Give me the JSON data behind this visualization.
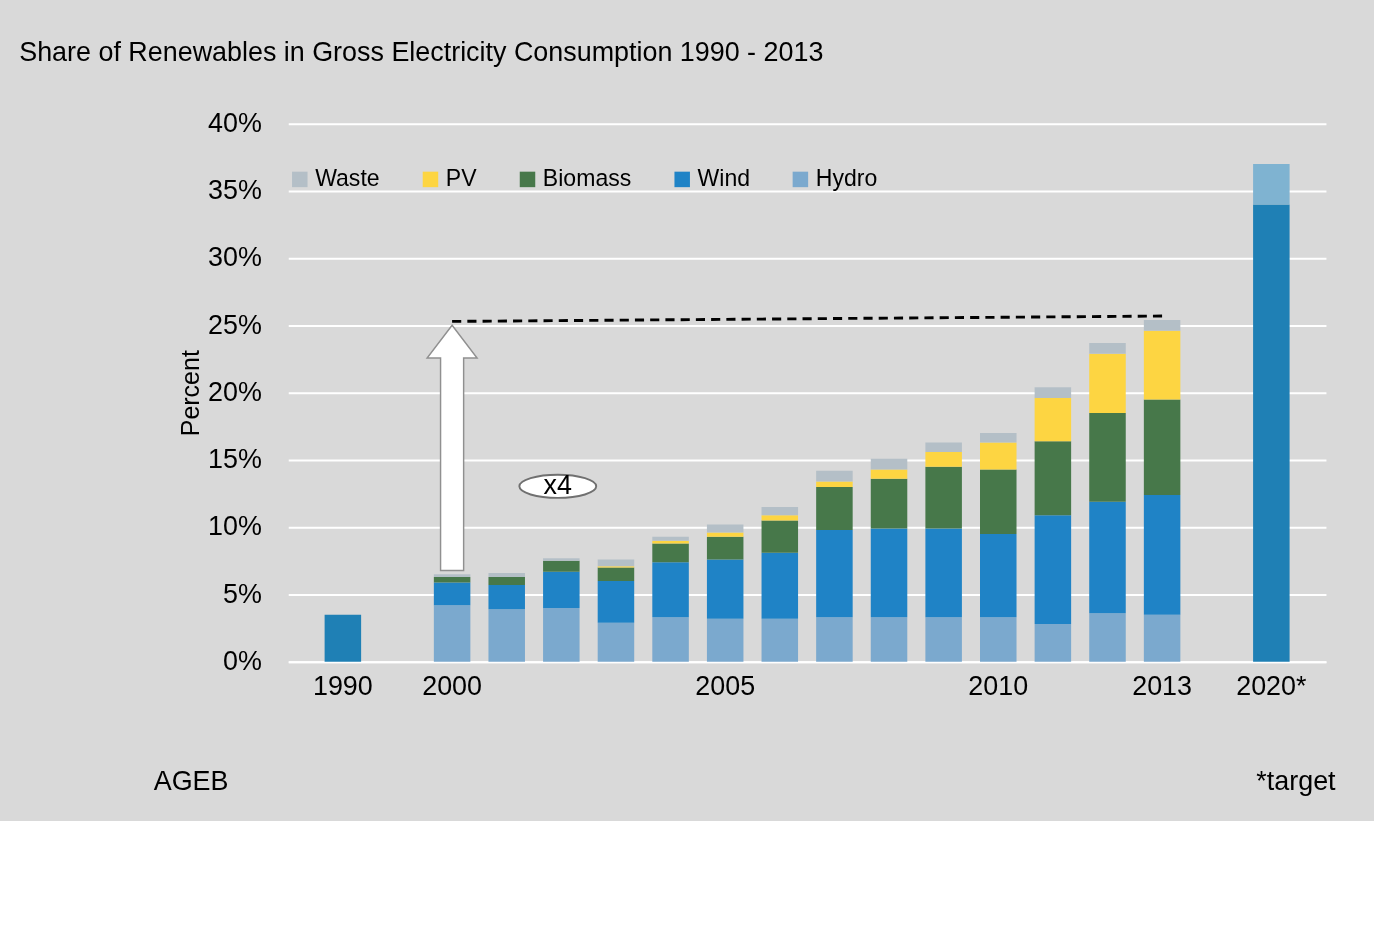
{
  "chart_data": {
    "type": "bar",
    "title": "Share of Renewables in Gross Electricity Consumption 1990 - 2013",
    "ylabel": "Percent",
    "stacked": true,
    "legend": "top",
    "grid": "y",
    "categories": [
      "1990",
      null,
      "2000",
      null,
      null,
      null,
      null,
      "2005",
      null,
      null,
      null,
      null,
      "2010",
      null,
      null,
      "2013",
      null,
      "2020*"
    ],
    "ylim": [
      0,
      40
    ],
    "yticks": [
      {
        "value": 0,
        "label": "0%"
      },
      {
        "value": 5,
        "label": "5%"
      },
      {
        "value": 10,
        "label": "10%"
      },
      {
        "value": 15,
        "label": "15%"
      },
      {
        "value": 20,
        "label": "20%"
      },
      {
        "value": 25,
        "label": "25%"
      },
      {
        "value": 30,
        "label": "30%"
      },
      {
        "value": 35,
        "label": "35%"
      },
      {
        "value": 40,
        "label": "40%"
      }
    ],
    "series": [
      {
        "color": "#1f80b5",
        "values": [
          3.5,
          null,
          null,
          null,
          null,
          null,
          null,
          null,
          null,
          null,
          null,
          null,
          null,
          null,
          null,
          null,
          null,
          34.0
        ]
      },
      {
        "name": "Hydro",
        "color": "#7ba9ce",
        "values": [
          null,
          null,
          4.2,
          3.9,
          4.0,
          2.9,
          3.3,
          3.2,
          3.2,
          3.3,
          3.3,
          3.3,
          3.3,
          2.8,
          3.6,
          3.5,
          null,
          null
        ]
      },
      {
        "name": "Wind",
        "color": "#1f83c6",
        "values": [
          null,
          null,
          1.7,
          1.8,
          2.7,
          3.1,
          4.1,
          4.4,
          4.9,
          6.5,
          6.6,
          6.6,
          6.2,
          8.1,
          8.3,
          8.9,
          null,
          null
        ]
      },
      {
        "name": "Biomass",
        "color": "#47784a",
        "values": [
          null,
          null,
          0.4,
          0.6,
          0.8,
          1.0,
          1.4,
          1.7,
          2.4,
          3.2,
          3.7,
          4.6,
          4.8,
          5.5,
          6.6,
          7.1,
          null,
          null
        ]
      },
      {
        "name": "PV",
        "color": "#fdd542",
        "values": [
          null,
          null,
          null,
          null,
          null,
          0.1,
          0.2,
          0.3,
          0.4,
          0.4,
          0.7,
          1.1,
          2.0,
          3.2,
          4.4,
          5.1,
          null,
          null
        ]
      },
      {
        "name": "Waste",
        "color": "#b4bfc7",
        "values": [
          null,
          null,
          0.2,
          0.3,
          0.2,
          0.5,
          0.3,
          0.6,
          0.6,
          0.8,
          0.8,
          0.7,
          0.7,
          0.8,
          0.8,
          0.8,
          null,
          null
        ]
      },
      {
        "color": "#7fb3d1",
        "values": [
          null,
          null,
          null,
          null,
          null,
          null,
          null,
          null,
          null,
          null,
          null,
          null,
          null,
          null,
          null,
          null,
          null,
          3.0
        ]
      },
      {
        "type": "line",
        "line_style": "dashed",
        "color": "#000000",
        "values": [
          null,
          null,
          25.3,
          null,
          null,
          null,
          null,
          null,
          null,
          null,
          null,
          null,
          null,
          null,
          null,
          25.7,
          null,
          null
        ]
      }
    ],
    "annotations": [
      "x4",
      "AGEB",
      "*target"
    ]
  }
}
